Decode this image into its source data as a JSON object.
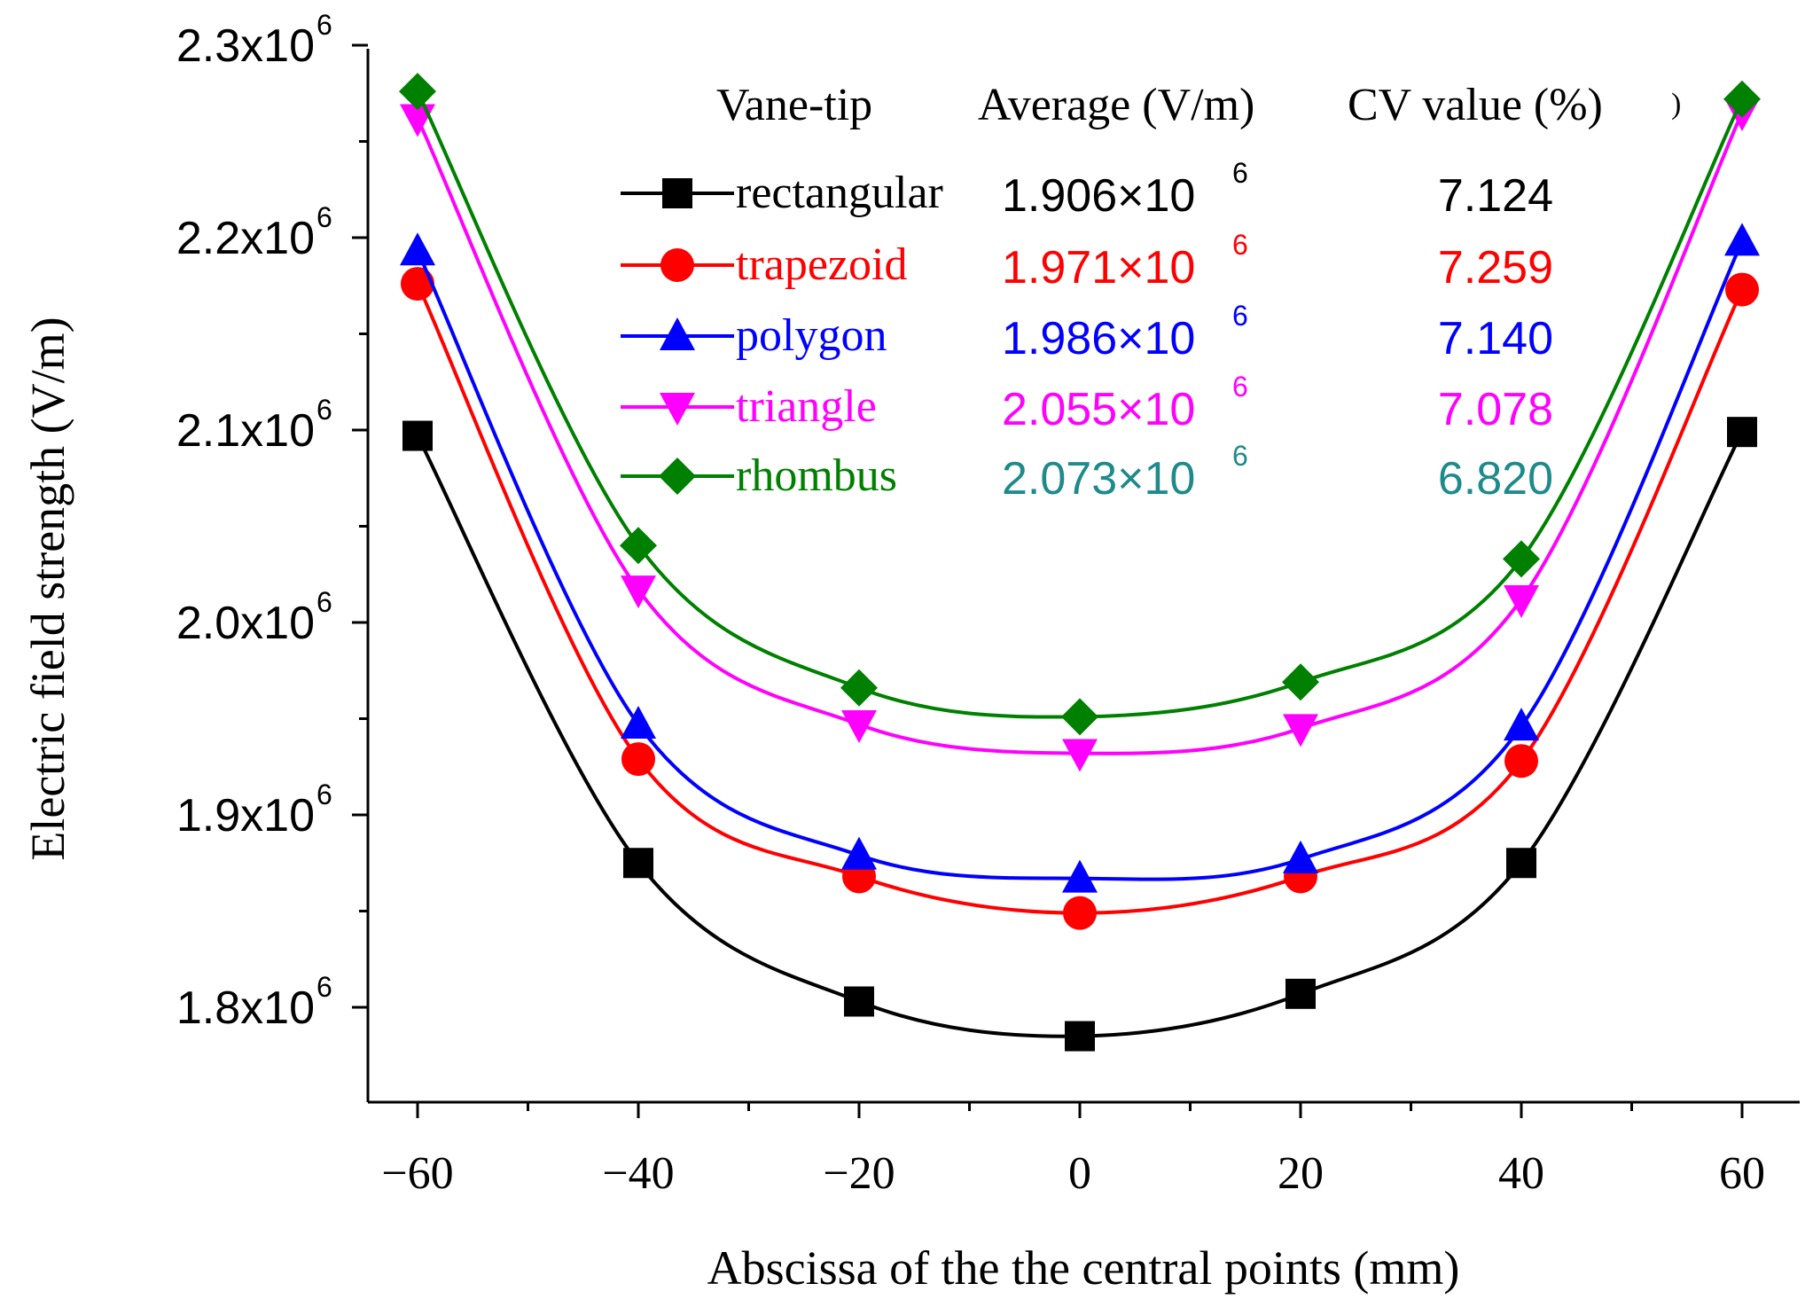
{
  "chart_data": {
    "type": "line",
    "title": "",
    "xlabel": "Abscissa of the the central points (mm)",
    "ylabel": "Electric field strength (V/m)",
    "x": [
      -60,
      -40,
      -20,
      0,
      20,
      40,
      60
    ],
    "xlim": [
      -65,
      65
    ],
    "ylim": [
      1.75,
      2.3
    ],
    "x_ticks": [
      -60,
      -40,
      -20,
      0,
      20,
      40,
      60
    ],
    "x_tick_labels": [
      "−60",
      "−40",
      "−20",
      "0",
      "20",
      "40",
      "60"
    ],
    "y_ticks": [
      1.8,
      1.9,
      2.0,
      2.1,
      2.2,
      2.3
    ],
    "y_tick_mantissa": [
      "1.8x10",
      "1.9x10",
      "2.0x10",
      "2.1x10",
      "2.2x10",
      "2.3x10"
    ],
    "y_tick_exponent": "6",
    "y_unit_note": "values in units of 10^6 V/m",
    "grid": false,
    "legend_position": "top-center",
    "legend_header": {
      "name": "Vane-tip",
      "average": "Average (V/m)",
      "cv": "CV value (%)",
      "stray_mark": ")"
    },
    "series": [
      {
        "name": "rectangular",
        "color": "#000000",
        "value_color": "#000000",
        "marker": "square",
        "values": [
          2.097,
          1.875,
          1.803,
          1.785,
          1.807,
          1.875,
          2.099
        ],
        "average_text": "1.906×10",
        "average_exp": "6",
        "cv_text": "7.124"
      },
      {
        "name": "trapezoid",
        "color": "#ff0000",
        "value_color": "#ff0000",
        "marker": "circle",
        "values": [
          2.176,
          1.929,
          1.868,
          1.849,
          1.868,
          1.928,
          2.173
        ],
        "average_text": "1.971×10",
        "average_exp": "6",
        "cv_text": "7.259"
      },
      {
        "name": "polygon",
        "color": "#0000ff",
        "value_color": "#0000ff",
        "marker": "triangle-up",
        "values": [
          2.193,
          1.947,
          1.879,
          1.867,
          1.877,
          1.946,
          2.198
        ],
        "average_text": "1.986×10",
        "average_exp": "6",
        "cv_text": "7.140"
      },
      {
        "name": "triangle",
        "color": "#ff00ff",
        "value_color": "#ff00ff",
        "marker": "triangle-down",
        "values": [
          2.262,
          2.017,
          1.947,
          1.932,
          1.945,
          2.012,
          2.265
        ],
        "average_text": "2.055×10",
        "average_exp": "6",
        "cv_text": "7.078"
      },
      {
        "name": "rhombus",
        "color": "#008000",
        "value_color": "#1f8a8a",
        "marker": "diamond",
        "values": [
          2.276,
          2.04,
          1.966,
          1.951,
          1.969,
          2.033,
          2.272
        ],
        "average_text": "2.073×10",
        "average_exp": "6",
        "cv_text": "6.820"
      }
    ]
  }
}
